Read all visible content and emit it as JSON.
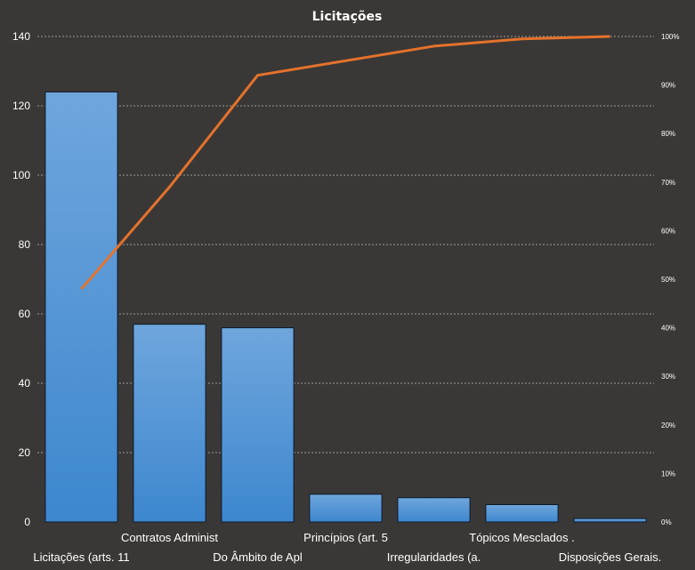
{
  "chart_data": {
    "type": "bar",
    "title": "Licitações",
    "categories": [
      "Licitações (arts. 11",
      "Contratos Administ",
      "Do Âmbito de Apl",
      "Princípios (art. 5",
      "Irregularidades (a.",
      "Tópicos Mesclados  .",
      "Disposições Gerais."
    ],
    "series": [
      {
        "values": [
          124,
          57,
          56,
          8,
          7,
          5,
          1
        ]
      },
      {
        "type": "line",
        "axis": "secondary",
        "values": [
          48,
          69,
          92,
          95,
          98,
          99.5,
          100
        ]
      }
    ],
    "ylim": [
      0,
      140
    ],
    "yticks": [
      "0",
      "20",
      "40",
      "60",
      "80",
      "100",
      "120",
      "140"
    ],
    "y2lim": [
      0,
      100
    ],
    "y2ticks": [
      "0%",
      "10%",
      "20%",
      "30%",
      "40%",
      "50%",
      "60%",
      "70%",
      "80%",
      "90%",
      "100%"
    ],
    "grid": true,
    "legend": "none",
    "colors": {
      "bar_top": "#6fa6dc",
      "bar_bottom": "#3d87cf",
      "line": "#e5722c",
      "background": "#3a3836"
    }
  }
}
